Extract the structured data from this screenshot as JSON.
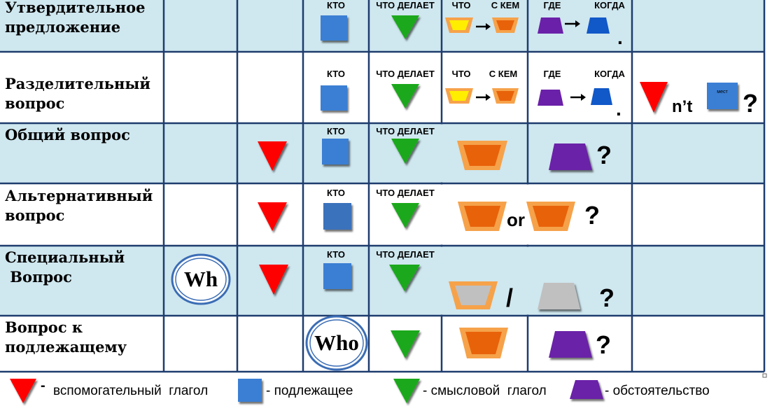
{
  "rows": [
    {
      "label_lines": [
        "Утвердительное",
        "предложение"
      ],
      "captions": {
        "who": "КТО",
        "does": "ЧТО ДЕЛАЕТ",
        "what": "ЧТО",
        "with": "С КЕМ",
        "where": "ГДЕ",
        "when": "КОГДА"
      },
      "end_mark": "."
    },
    {
      "label_lines": [
        "Разделительный",
        "вопрос"
      ],
      "captions": {
        "who": "КТО",
        "does": "ЧТО ДЕЛАЕТ",
        "what": "ЧТО",
        "with": "С КЕМ",
        "where": "ГДЕ",
        "when": "КОГДА"
      },
      "end_mark": ".",
      "tag": {
        "nt": "n’t",
        "box_label": "мест",
        "qmark": "?"
      }
    },
    {
      "label_lines": [
        "Общий вопрос"
      ],
      "captions": {
        "who": "КТО",
        "does": "ЧТО ДЕЛАЕТ"
      },
      "end_mark": "?"
    },
    {
      "label_lines": [
        "Альтернативный",
        "вопрос"
      ],
      "captions": {
        "who": "КТО",
        "does": "ЧТО ДЕЛАЕТ"
      },
      "or_text": "or",
      "end_mark": "?"
    },
    {
      "label_lines": [
        "Специальный",
        " Вопрос"
      ],
      "wh_text": "Wh",
      "captions": {
        "who": "КТО",
        "does": "ЧТО ДЕЛАЕТ"
      },
      "slash": "/",
      "end_mark": "?"
    },
    {
      "label_lines": [
        "Вопрос к",
        "подлежащему"
      ],
      "who_text": "Who",
      "end_mark": "?"
    }
  ],
  "legend": [
    {
      "dash": "-",
      "text": "вспомогательный  глагол",
      "shape": "red-triangle",
      "color": "#ff0000"
    },
    {
      "dash": "",
      "text": "- подлежащее",
      "shape": "blue-square",
      "color": "#3b7fd4"
    },
    {
      "dash": "",
      "text": "- смысловой  глагол",
      "shape": "green-triangle",
      "color": "#1aa81a"
    },
    {
      "dash": "",
      "text": "- обстоятельство",
      "shape": "purple-trapezoid",
      "color": "#6a20a8"
    }
  ],
  "colors": {
    "band": "#cfe7ef",
    "grid": "#1e3c6e",
    "red": "#ff0000",
    "blue": "#3b7fd4",
    "green": "#1aa81a",
    "orange": "#e8620a",
    "orange_light": "#f6a24a",
    "yellow": "#ffee00",
    "purple": "#6a20a8",
    "grey": "#c0c0c0"
  }
}
